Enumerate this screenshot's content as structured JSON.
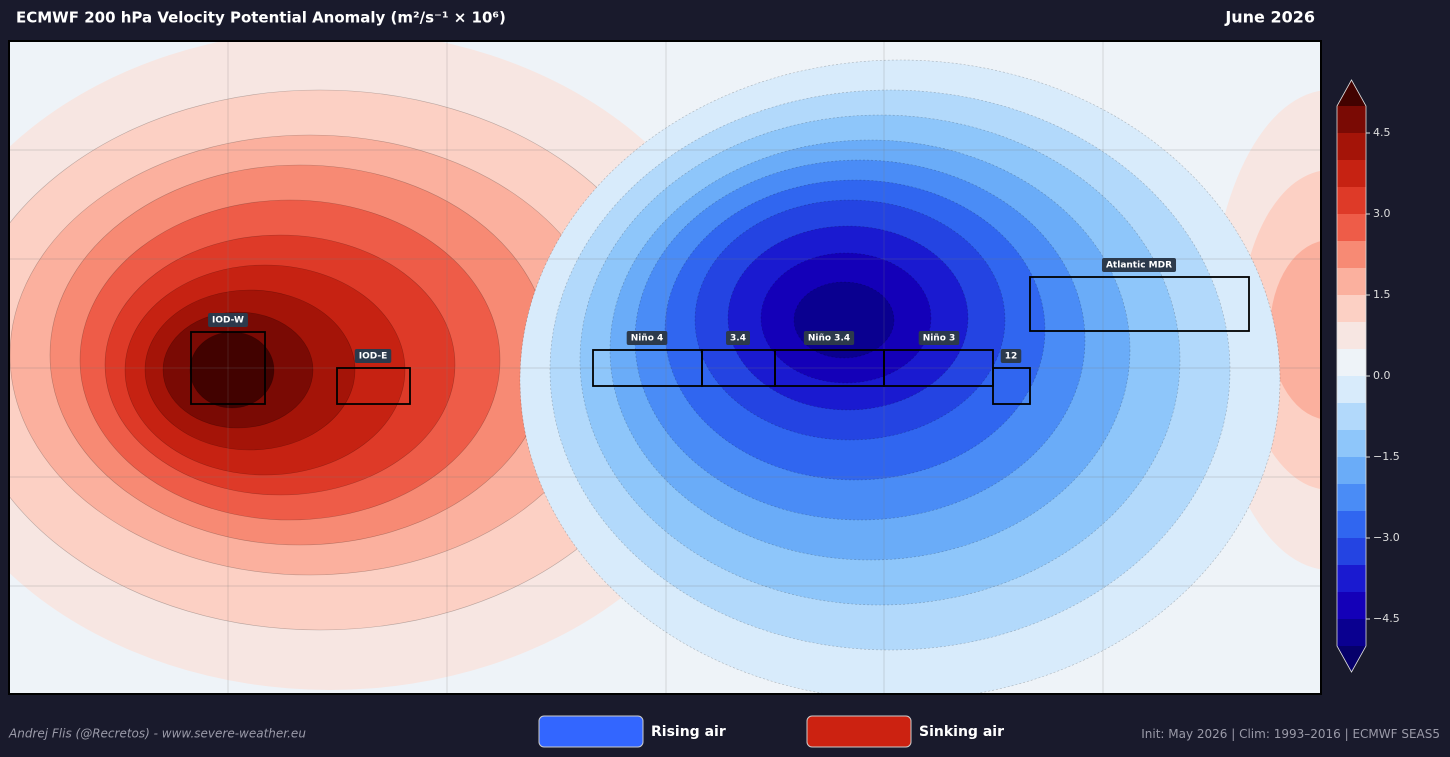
{
  "header": {
    "title": "ECMWF 200 hPa Velocity Potential Anomaly  (m²/s⁻¹ × 10⁶)",
    "date": "June 2026"
  },
  "colorbar": {
    "range": [
      -5,
      5
    ],
    "ticks": [
      {
        "value": 4.5,
        "label": "4.5"
      },
      {
        "value": 3,
        "label": "3.0"
      },
      {
        "value": 1.5,
        "label": "1.5"
      },
      {
        "value": 0,
        "label": "0.0"
      },
      {
        "value": -1.5,
        "label": "−1.5"
      },
      {
        "value": -3,
        "label": "−3.0"
      },
      {
        "value": -4.5,
        "label": "−4.5"
      }
    ],
    "colors": [
      "#0a0090",
      "#1400b8",
      "#1a1ad0",
      "#2444e2",
      "#3066f0",
      "#4a8cf6",
      "#6aacf8",
      "#8ec6fa",
      "#b2d9fb",
      "#d8ebfb",
      "#eef3f8",
      "#f7e6e2",
      "#fcd0c4",
      "#fbb09e",
      "#f78a74",
      "#ee5c48",
      "#de3a28",
      "#c62212",
      "#a41408",
      "#7a0a04"
    ],
    "under": "#06006a",
    "over": "#420200"
  },
  "regions": [
    "IOD-W",
    "IOD-E",
    "Niño 4",
    "3.4",
    "Niño 3.4",
    "Niño 3",
    "12",
    "Atlantic MDR"
  ],
  "legend": [
    {
      "label": "Rising air",
      "color": "#3366ff"
    },
    {
      "label": "Sinking air",
      "color": "#cc2211"
    }
  ],
  "footer": {
    "credit": "Andrej Flis (@Recretos) - www.severe-weather.eu",
    "init": [
      "Init: May 2026",
      "Clim: 1993–2016",
      "ECMWF SEAS5"
    ]
  }
}
